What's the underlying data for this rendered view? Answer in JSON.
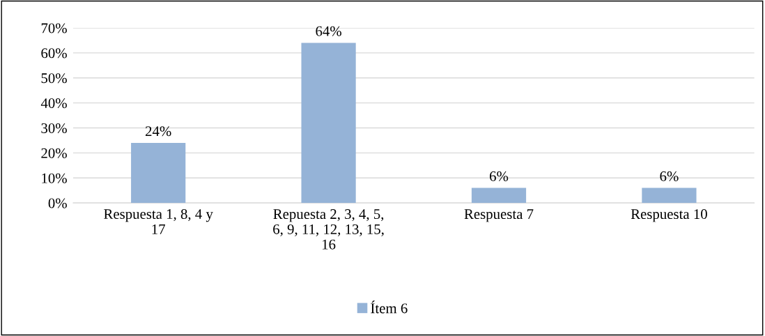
{
  "chart_data": {
    "type": "bar",
    "categories": [
      "Respuesta 1, 8, 4 y 17",
      "Repuesta 2, 3, 4, 5, 6, 9, 11, 12, 13, 15, 16",
      "Respuesta 7",
      "Respuesta 10"
    ],
    "series": [
      {
        "name": "Ítem 6",
        "color": "#95b3d7",
        "values": [
          24,
          64,
          6,
          6
        ],
        "value_labels": [
          "24%",
          "64%",
          "6%",
          "6%"
        ]
      }
    ],
    "ylim": [
      0,
      70
    ],
    "yticks": [
      {
        "value": 0,
        "label": "0%"
      },
      {
        "value": 10,
        "label": "10%"
      },
      {
        "value": 20,
        "label": "20%"
      },
      {
        "value": 30,
        "label": "30%"
      },
      {
        "value": 40,
        "label": "40%"
      },
      {
        "value": 50,
        "label": "50%"
      },
      {
        "value": 60,
        "label": "60%"
      },
      {
        "value": 70,
        "label": "70%"
      }
    ],
    "grid": "y",
    "legend": "bottom"
  }
}
